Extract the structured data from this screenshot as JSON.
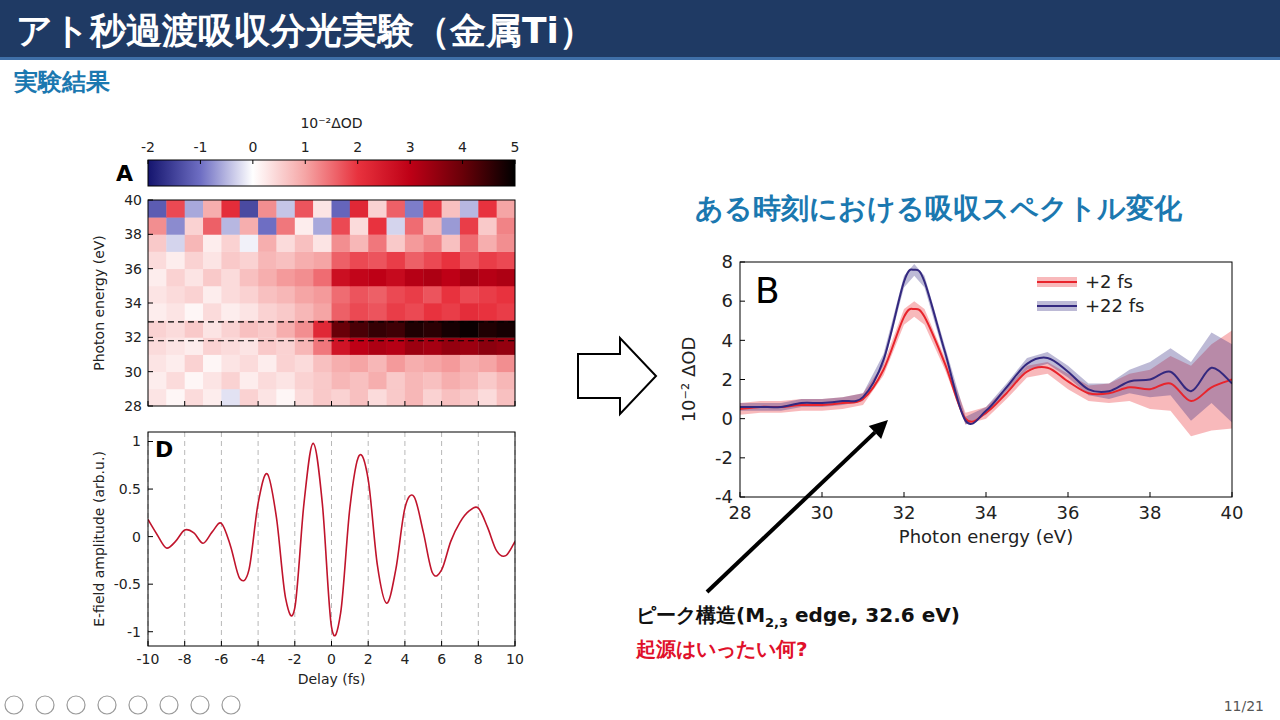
{
  "slide": {
    "title": "アト秒過渡吸収分光実験（金属Ti）",
    "subtitle": "実験結果",
    "heading": "ある時刻における吸収スペクトル変化",
    "annotation": {
      "before": "ピーク構造(M",
      "subscript": "2,3",
      "after": " edge, 32.6 eV)"
    },
    "question": "起源はいったい何?",
    "page": "11/21"
  },
  "chart_data": [
    {
      "type": "heatmap",
      "panel": "A",
      "y_label": "Photon energy (eV)",
      "xbins": [
        -10,
        -9,
        -8,
        -7,
        -6,
        -5,
        -4,
        -3,
        -2,
        -1,
        0,
        1,
        2,
        3,
        4,
        5,
        6,
        7,
        8,
        9,
        10
      ],
      "ybins": [
        28,
        29,
        30,
        31,
        32,
        33,
        34,
        35,
        36,
        37,
        38,
        39,
        40
      ],
      "cells": [
        [
          0.3,
          0.1,
          0.4,
          0.2,
          -0.2,
          0.5,
          0.3,
          0.1,
          0.4,
          0.6,
          0.5,
          0.7,
          0.4,
          0.6,
          0.8,
          0.5,
          0.7,
          0.6,
          0.4,
          0.7
        ],
        [
          0.2,
          0.4,
          0.1,
          0.3,
          0.5,
          0.2,
          0.4,
          0.3,
          0.5,
          0.6,
          0.8,
          0.7,
          0.9,
          0.6,
          0.8,
          0.7,
          0.9,
          0.8,
          0.6,
          0.8
        ],
        [
          0.3,
          0.2,
          0.5,
          0.1,
          0.3,
          0.4,
          0.2,
          0.5,
          0.4,
          0.7,
          0.9,
          1.0,
          0.8,
          1.1,
          0.9,
          1.0,
          1.1,
          0.9,
          1.0,
          1.2
        ],
        [
          0.4,
          0.3,
          0.2,
          0.5,
          0.4,
          0.3,
          0.6,
          0.5,
          0.8,
          1.4,
          2.6,
          3.0,
          3.2,
          3.1,
          3.4,
          3.3,
          3.5,
          3.4,
          3.6,
          3.5
        ],
        [
          0.5,
          0.4,
          0.6,
          0.3,
          0.5,
          0.7,
          0.6,
          0.9,
          1.2,
          2.2,
          4.0,
          4.3,
          4.5,
          4.4,
          4.7,
          4.6,
          4.8,
          4.9,
          4.7,
          4.8
        ],
        [
          0.2,
          0.3,
          0.1,
          0.4,
          0.2,
          0.3,
          0.5,
          0.6,
          0.8,
          1.0,
          1.6,
          1.8,
          1.7,
          1.9,
          1.8,
          2.0,
          1.9,
          2.1,
          2.0,
          1.9
        ],
        [
          0.3,
          0.4,
          0.5,
          0.2,
          0.4,
          0.5,
          0.7,
          0.8,
          1.0,
          1.1,
          1.5,
          1.7,
          1.6,
          1.8,
          1.9,
          1.7,
          2.0,
          1.8,
          1.9,
          2.0
        ],
        [
          0.2,
          0.5,
          0.3,
          0.6,
          0.4,
          0.7,
          0.9,
          1.1,
          1.2,
          1.5,
          2.7,
          2.9,
          3.0,
          2.8,
          3.1,
          3.2,
          3.0,
          3.3,
          3.1,
          3.2
        ],
        [
          0.4,
          0.2,
          0.5,
          0.3,
          0.6,
          0.5,
          0.8,
          0.7,
          0.9,
          1.0,
          1.6,
          1.8,
          1.7,
          1.9,
          1.6,
          1.8,
          2.0,
          1.7,
          1.9,
          1.8
        ],
        [
          0.6,
          -0.3,
          0.8,
          0.2,
          0.5,
          -0.1,
          0.9,
          0.4,
          0.7,
          0.3,
          1.2,
          0.8,
          1.4,
          0.6,
          1.1,
          1.3,
          0.7,
          1.5,
          0.9,
          1.2
        ],
        [
          1.2,
          -0.8,
          0.5,
          1.6,
          -0.5,
          0.9,
          -1.0,
          1.4,
          0.2,
          -0.6,
          1.8,
          0.4,
          2.0,
          -0.3,
          1.5,
          0.8,
          -0.7,
          1.9,
          0.6,
          1.3
        ],
        [
          -1.2,
          1.8,
          -0.6,
          0.9,
          2.1,
          -1.4,
          1.2,
          -0.4,
          1.7,
          0.3,
          -1.1,
          2.2,
          0.5,
          1.6,
          -0.9,
          1.9,
          0.7,
          -0.5,
          2.0,
          1.0
        ]
      ],
      "xlim": [
        -10,
        10
      ],
      "ylim": [
        28,
        40
      ],
      "xticks": [
        -10,
        -8,
        -6,
        -4,
        -2,
        0,
        2,
        4,
        6,
        8,
        10
      ],
      "yticks": [
        28,
        30,
        32,
        34,
        36,
        38,
        40
      ],
      "tick_labels": "y",
      "reference_lines": [
        31.8,
        32.9
      ],
      "colorbar_label": "10⁻²ΔOD",
      "color_range": [
        -2,
        5
      ],
      "color_ticks": [
        -2,
        -1,
        0,
        1,
        2,
        3,
        4,
        5
      ]
    },
    {
      "type": "line",
      "panel": "B",
      "x_label": "Photon energy (eV)",
      "y_label": "10⁻² ΔOD",
      "x": [
        28,
        28.5,
        29,
        29.5,
        30,
        30.5,
        31,
        31.5,
        32,
        32.25,
        32.5,
        33,
        33.5,
        34,
        34.5,
        35,
        35.5,
        36,
        36.5,
        37,
        37.5,
        38,
        38.5,
        39,
        39.5,
        40
      ],
      "series": [
        {
          "name": "+2 fs",
          "color": "#e8242c",
          "values": [
            0.5,
            0.6,
            0.6,
            0.7,
            0.7,
            0.8,
            1.0,
            2.5,
            5.2,
            5.6,
            5.2,
            2.8,
            0.0,
            0.3,
            1.3,
            2.4,
            2.6,
            1.9,
            1.3,
            1.3,
            1.6,
            1.5,
            1.8,
            0.9,
            1.6,
            2.0
          ],
          "errors": [
            0.3,
            0.3,
            0.3,
            0.3,
            0.3,
            0.3,
            0.3,
            0.3,
            0.4,
            0.4,
            0.4,
            0.3,
            0.3,
            0.3,
            0.3,
            0.3,
            0.3,
            0.4,
            0.4,
            0.5,
            0.7,
            1.0,
            1.4,
            1.8,
            2.2,
            2.5
          ]
        },
        {
          "name": "+22 fs",
          "color": "#33287f",
          "values": [
            0.6,
            0.6,
            0.6,
            0.8,
            0.8,
            0.9,
            1.1,
            3.0,
            7.0,
            7.6,
            7.0,
            3.4,
            -0.1,
            0.4,
            1.6,
            2.8,
            3.1,
            2.4,
            1.5,
            1.4,
            1.9,
            2.0,
            2.4,
            1.4,
            2.6,
            1.8
          ],
          "errors": [
            0.2,
            0.2,
            0.2,
            0.2,
            0.2,
            0.2,
            0.2,
            0.3,
            0.3,
            0.3,
            0.3,
            0.3,
            0.2,
            0.2,
            0.2,
            0.3,
            0.3,
            0.3,
            0.3,
            0.4,
            0.6,
            0.9,
            1.2,
            1.5,
            1.8,
            2.0
          ]
        }
      ],
      "xlim": [
        28,
        40
      ],
      "ylim": [
        -4,
        8
      ],
      "xticks": [
        28,
        30,
        32,
        34,
        36,
        38,
        40
      ],
      "yticks": [
        -4,
        -2,
        0,
        2,
        4,
        6,
        8
      ],
      "legend": "upper right"
    },
    {
      "type": "line",
      "panel": "D",
      "x_label": "Delay (fs)",
      "y_label": "E-field amplitude (arb.u.)",
      "x": [
        -10,
        -9.5,
        -9,
        -8.5,
        -8,
        -7.5,
        -7,
        -6.5,
        -6,
        -5.5,
        -5,
        -4.5,
        -4,
        -3.5,
        -3,
        -2.5,
        -2,
        -1.5,
        -1,
        -0.5,
        0,
        0.5,
        1,
        1.5,
        2,
        2.5,
        3,
        3.5,
        4,
        4.5,
        5,
        5.5,
        6,
        6.5,
        7,
        7.5,
        8,
        8.5,
        9,
        9.5,
        10
      ],
      "series": [
        {
          "color": "#c0142c",
          "values": [
            0.18,
            0.02,
            -0.12,
            -0.05,
            0.07,
            0.04,
            -0.07,
            0.05,
            0.14,
            -0.1,
            -0.44,
            -0.35,
            0.35,
            0.66,
            0.2,
            -0.65,
            -0.75,
            0.35,
            0.98,
            0.35,
            -0.95,
            -0.8,
            0.3,
            0.85,
            0.6,
            -0.3,
            -0.7,
            -0.35,
            0.3,
            0.42,
            0.05,
            -0.38,
            -0.35,
            -0.05,
            0.15,
            0.27,
            0.3,
            0.1,
            -0.15,
            -0.2,
            -0.05
          ]
        }
      ],
      "xlim": [
        -10,
        10
      ],
      "ylim": [
        -1.15,
        1.1
      ],
      "xticks": [
        -10,
        -8,
        -6,
        -4,
        -2,
        0,
        2,
        4,
        6,
        8,
        10
      ],
      "yticks": [
        -1,
        -0.5,
        0,
        0.5,
        1
      ],
      "grid": "x"
    }
  ]
}
